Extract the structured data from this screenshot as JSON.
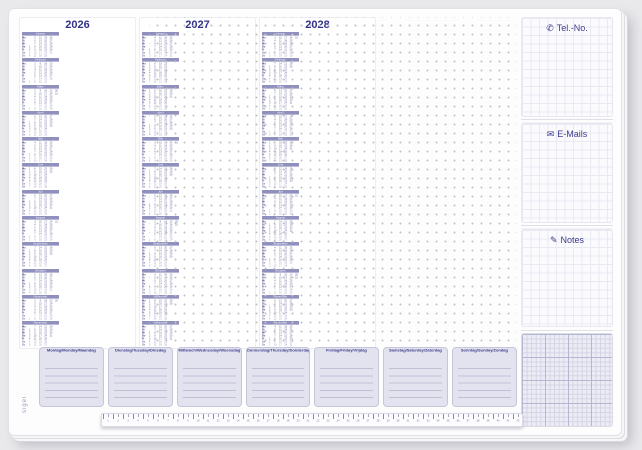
{
  "page": {
    "background": "#e9e9ec",
    "pad_color": "#fdfdfe",
    "accent": "#3c3c8e"
  },
  "calendar": {
    "years": [
      "2026",
      "2027",
      "2028"
    ],
    "month_names": [
      "Januar",
      "Februar",
      "März",
      "April",
      "Mai",
      "Juni",
      "Juli",
      "August",
      "September",
      "Oktober",
      "November",
      "Dezember"
    ],
    "day_initials": [
      "Mo",
      "Di",
      "Mi",
      "Do",
      "Fr",
      "Sa",
      "So"
    ]
  },
  "right_panel": {
    "sections": [
      {
        "label": "Tel.-No.",
        "glyph": "✆"
      },
      {
        "label": "E-Mails",
        "glyph": "✉"
      },
      {
        "label": "Notes",
        "glyph": "✎"
      },
      {
        "label": ""
      }
    ]
  },
  "planner": {
    "days": [
      "Montag/Monday/Maandag",
      "Dienstag/Tuesday/Dinsdag",
      "Mittwoch/Wednesday/Woensdag",
      "Donnerstag/Thursday/Donderdag",
      "Freitag/Friday/Vrijdag",
      "Samstag/Saturday/Zaterdag",
      "Sonntag/Sunday/Zondag"
    ]
  },
  "ruler": {
    "unit_min": 1,
    "unit_max": 42
  },
  "brand": {
    "label": "sigel"
  }
}
